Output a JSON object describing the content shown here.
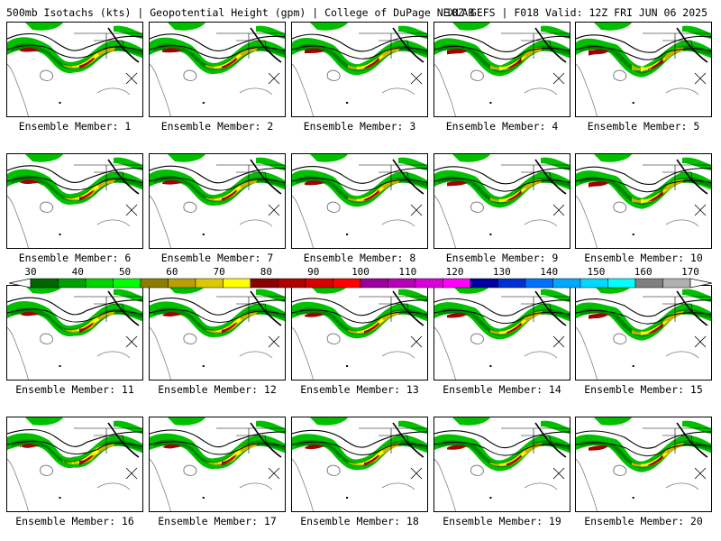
{
  "header": {
    "left": "500mb Isotachs (kts) | Geopotential Height (gpm) | College of DuPage NEXLAB",
    "right": "18Z GEFS | F018 Valid: 12Z FRI JUN 06 2025"
  },
  "panel_label_prefix": "Ensemble Member: ",
  "members": [
    {
      "label": "Ensemble Member: 1"
    },
    {
      "label": "Ensemble Member: 2"
    },
    {
      "label": "Ensemble Member: 3"
    },
    {
      "label": "Ensemble Member: 4"
    },
    {
      "label": "Ensemble Member: 5"
    },
    {
      "label": "Ensemble Member: 6"
    },
    {
      "label": "Ensemble Member: 7"
    },
    {
      "label": "Ensemble Member: 8"
    },
    {
      "label": "Ensemble Member: 9"
    },
    {
      "label": "Ensemble Member: 10"
    },
    {
      "label": "Ensemble Member: 11"
    },
    {
      "label": "Ensemble Member: 12"
    },
    {
      "label": "Ensemble Member: 13"
    },
    {
      "label": "Ensemble Member: 14"
    },
    {
      "label": "Ensemble Member: 15"
    },
    {
      "label": "Ensemble Member: 16"
    },
    {
      "label": "Ensemble Member: 17"
    },
    {
      "label": "Ensemble Member: 18"
    },
    {
      "label": "Ensemble Member: 19"
    },
    {
      "label": "Ensemble Member: 20"
    }
  ],
  "colorbar": {
    "tick_labels": [
      "30",
      "40",
      "50",
      "60",
      "70",
      "80",
      "90",
      "100",
      "110",
      "120",
      "130",
      "140",
      "150",
      "160",
      "170"
    ],
    "colors": [
      "#006400",
      "#00a000",
      "#00d400",
      "#00ff00",
      "#8b7d00",
      "#b8a000",
      "#dcc800",
      "#ffff00",
      "#8b0000",
      "#b00000",
      "#d80000",
      "#ff0000",
      "#9a009a",
      "#b800b8",
      "#d800d8",
      "#ff00ff",
      "#0000a0",
      "#0030d0",
      "#0070ff",
      "#00a8ff",
      "#00d8ff",
      "#00ffff",
      "#808080",
      "#b0b0b0"
    ]
  },
  "map_colors": {
    "wind_40": "#00c000",
    "wind_50": "#008800",
    "wind_60": "#c8b400",
    "wind_70": "#ffff00",
    "wind_80": "#a00000",
    "height": "#000000",
    "border": "#808080"
  }
}
